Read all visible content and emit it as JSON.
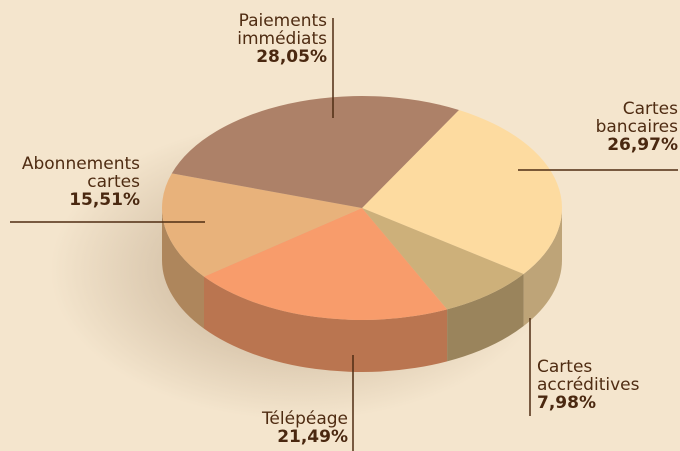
{
  "chart_data": {
    "type": "pie",
    "categories": [
      "Cartes bancaires",
      "Cartes accréditives",
      "Télépéage",
      "Abonnements cartes",
      "Paiements immédiats"
    ],
    "values": [
      26.97,
      7.98,
      21.49,
      15.51,
      28.05
    ],
    "value_labels": [
      "26,97%",
      "7,98%",
      "21,49%",
      "15,51%",
      "28,05%"
    ],
    "colors": [
      "#fddba0",
      "#cdb07a",
      "#f89c6b",
      "#e8b27b",
      "#ad8168"
    ],
    "three_d": true
  }
}
